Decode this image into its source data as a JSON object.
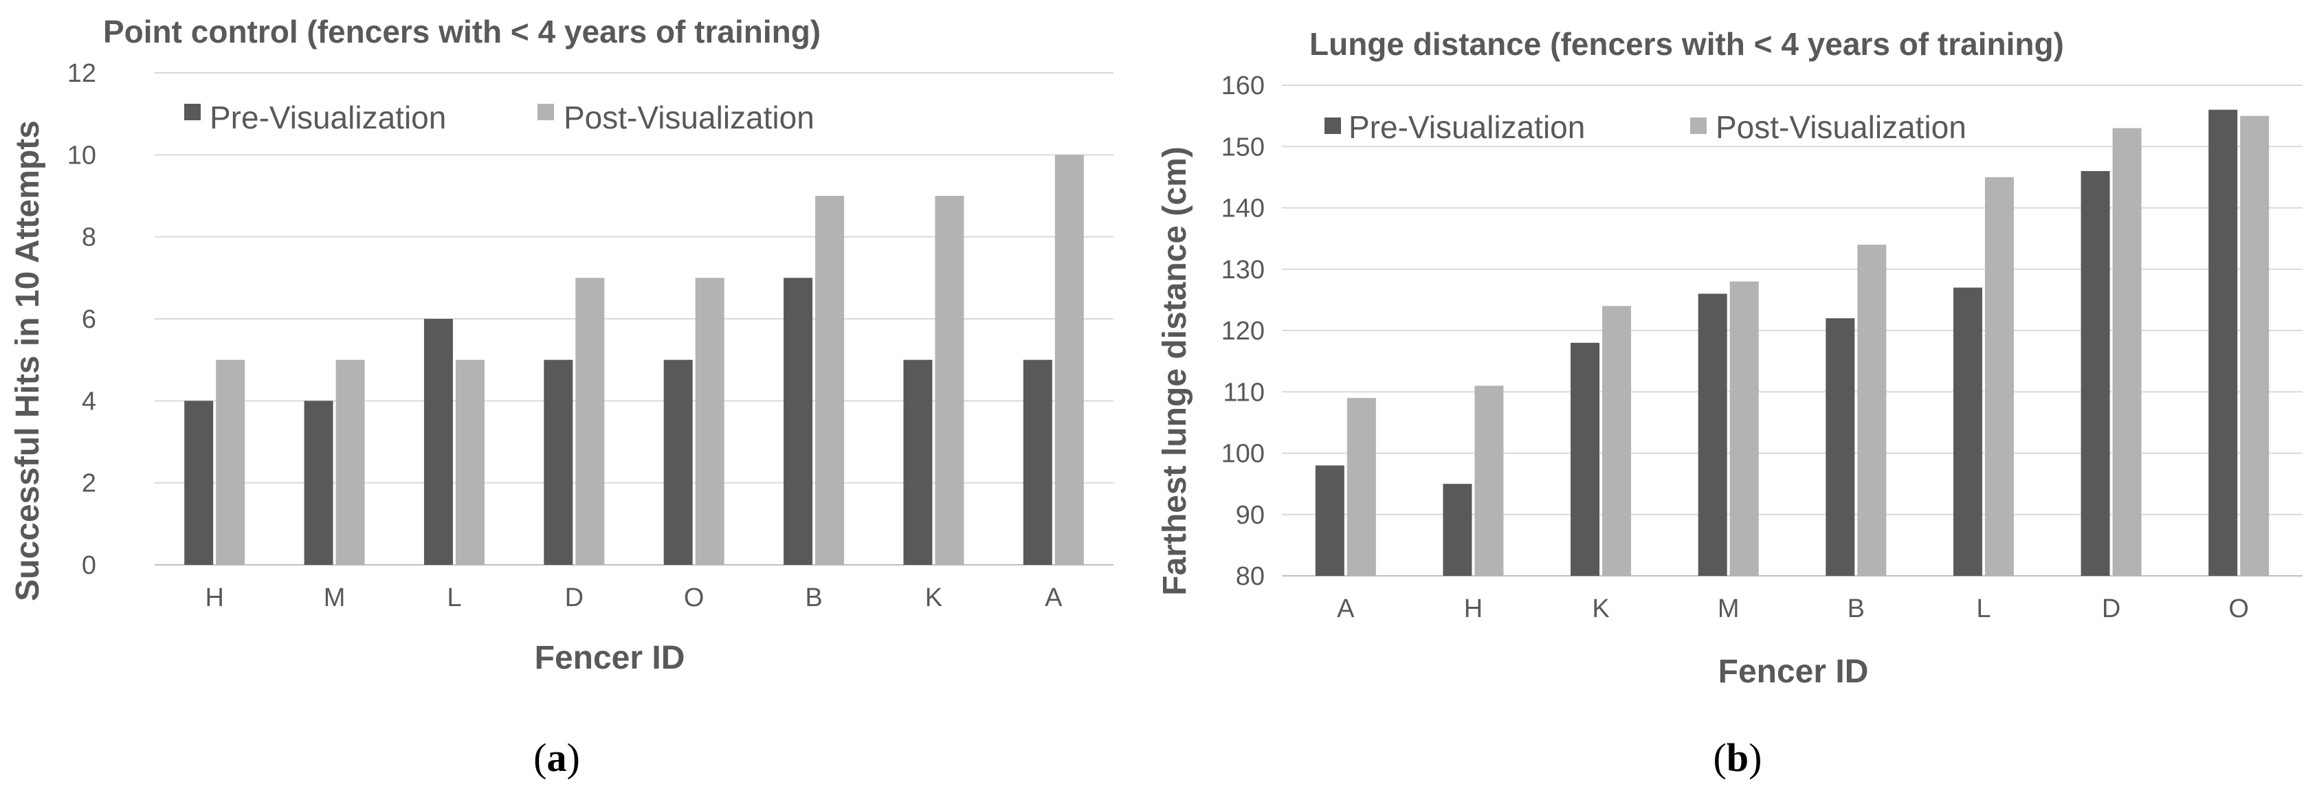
{
  "colors": {
    "pre": "#595959",
    "post": "#b3b3b3"
  },
  "chart_data": [
    {
      "type": "bar",
      "title": "Point control (fencers with < 4 years of training)",
      "xlabel": "Fencer ID",
      "ylabel": "Successful Hits in 10 Attempts",
      "ylim": [
        0,
        12
      ],
      "yticks": [
        0,
        2,
        4,
        6,
        8,
        10,
        12
      ],
      "grid": true,
      "legend_position": "top-left",
      "categories": [
        "H",
        "M",
        "L",
        "D",
        "O",
        "B",
        "K",
        "A"
      ],
      "series": [
        {
          "name": "Pre-Visualization",
          "values": [
            4,
            4,
            6,
            5,
            5,
            7,
            5,
            5
          ]
        },
        {
          "name": "Post-Visualization",
          "values": [
            5,
            5,
            5,
            7,
            7,
            9,
            9,
            10
          ]
        }
      ],
      "caption_label": "a"
    },
    {
      "type": "bar",
      "title": "Lunge distance (fencers with < 4 years of training)",
      "xlabel": "Fencer ID",
      "ylabel": "Farthest lunge distance (cm)",
      "ylim": [
        80,
        160
      ],
      "yticks": [
        80,
        90,
        100,
        110,
        120,
        130,
        140,
        150,
        160
      ],
      "grid": true,
      "legend_position": "top-left",
      "categories": [
        "A",
        "H",
        "K",
        "M",
        "B",
        "L",
        "D",
        "O"
      ],
      "series": [
        {
          "name": "Pre-Visualization",
          "values": [
            98,
            95,
            118,
            126,
            122,
            127,
            146,
            156
          ]
        },
        {
          "name": "Post-Visualization",
          "values": [
            109,
            111,
            124,
            128,
            134,
            145,
            153,
            155
          ]
        }
      ],
      "caption_label": "b"
    }
  ]
}
